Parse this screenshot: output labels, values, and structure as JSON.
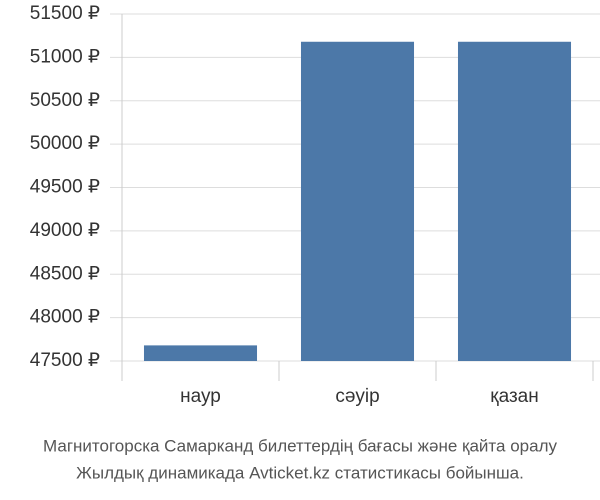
{
  "chart_data": {
    "type": "bar",
    "categories": [
      "наур",
      "сәуір",
      "қазан"
    ],
    "values": [
      47680,
      51180,
      51180
    ],
    "color": "#4c78a8",
    "ylim": [
      47500,
      51500
    ],
    "yticks": [
      {
        "value": 47500,
        "label": "47500 ₽"
      },
      {
        "value": 48000,
        "label": "48000 ₽"
      },
      {
        "value": 48500,
        "label": "48500 ₽"
      },
      {
        "value": 49000,
        "label": "49000 ₽"
      },
      {
        "value": 49500,
        "label": "49500 ₽"
      },
      {
        "value": 50000,
        "label": "50000 ₽"
      },
      {
        "value": 50500,
        "label": "50500 ₽"
      },
      {
        "value": 51000,
        "label": "51000 ₽"
      },
      {
        "value": 51500,
        "label": "51500 ₽"
      }
    ],
    "grid": true,
    "caption": [
      "Магнитогорска Самарканд билеттердің бағасы және қайта оралу",
      "Жылдық динамикада Avticket.kz статистикасы бойынша."
    ]
  }
}
